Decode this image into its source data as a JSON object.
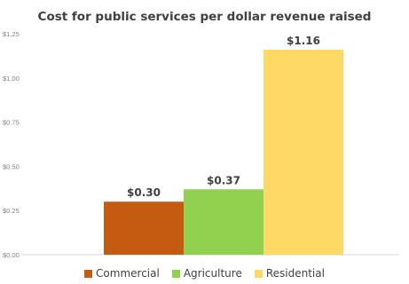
{
  "chart_data": {
    "type": "bar",
    "title": "Cost for public services per dollar revenue raised",
    "categories": [
      "Commercial",
      "Agriculture",
      "Residential"
    ],
    "values": [
      0.3,
      0.37,
      1.16
    ],
    "data_labels": [
      "$0.30",
      "$0.37",
      "$1.16"
    ],
    "colors": [
      "#c55a11",
      "#92d050",
      "#ffd966"
    ],
    "ylim": [
      0,
      1.25
    ],
    "yticks": [
      "$0.00",
      "$0.25",
      "$0.50",
      "$0.75",
      "$1.00",
      "$1.25"
    ],
    "ytick_values": [
      0,
      0.25,
      0.5,
      0.75,
      1.0,
      1.25
    ],
    "grid": false,
    "legend_position": "bottom"
  }
}
